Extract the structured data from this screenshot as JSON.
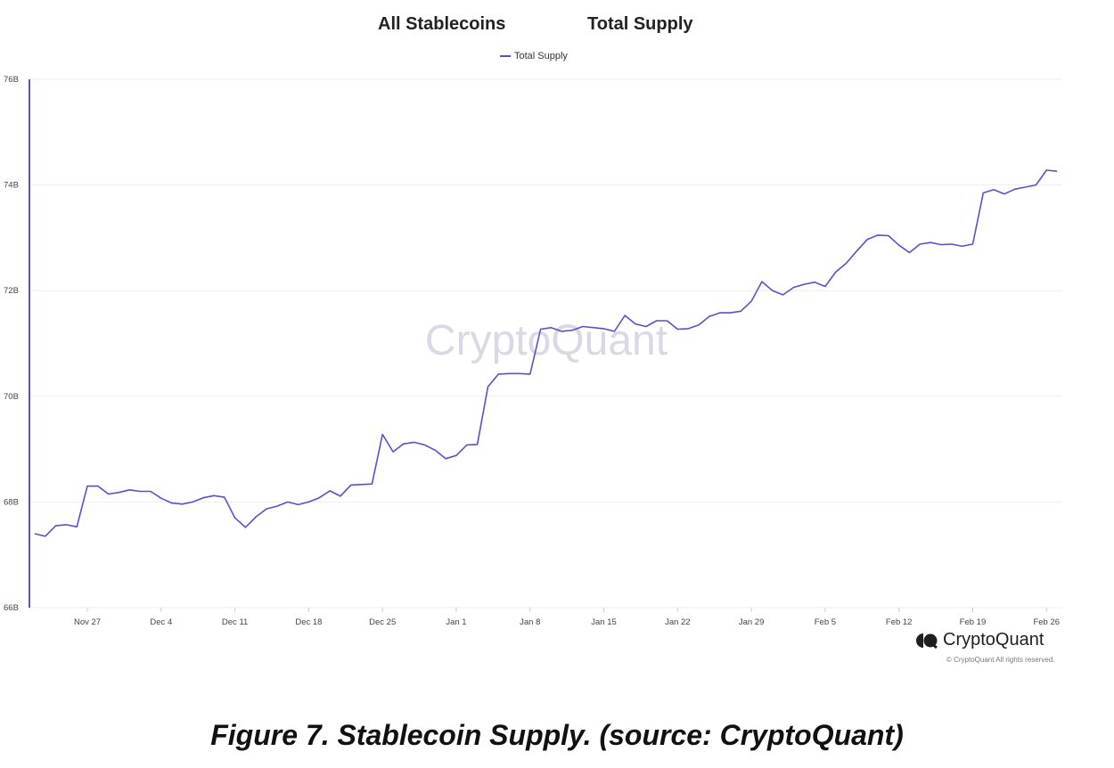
{
  "header": {
    "title_left": "All Stablecoins",
    "title_right": "Total Supply"
  },
  "watermark": "CryptoQuant",
  "brand": {
    "name": "CryptoQuant",
    "copyright": "© CryptoQuant All rights reserved.",
    "icon": "cryptoquant-logo-icon"
  },
  "caption": "Figure 7. Stablecoin Supply. (source: CryptoQuant)",
  "colors": {
    "line": "#5b4ed6",
    "grid": "#eeeeee",
    "axis": "#5b4ed6"
  },
  "chart_data": {
    "type": "line",
    "title": "",
    "xlabel": "",
    "ylabel": "",
    "legend": "top-center",
    "grid": true,
    "ylim": [
      66,
      76
    ],
    "y_unit": "B",
    "y_ticks": [
      {
        "value": 66,
        "label": "66B"
      },
      {
        "value": 68,
        "label": "68B"
      },
      {
        "value": 70,
        "label": "70B"
      },
      {
        "value": 72,
        "label": "72B"
      },
      {
        "value": 74,
        "label": "74B"
      },
      {
        "value": 76,
        "label": "76B"
      }
    ],
    "x_ticks": [
      {
        "date": "2022-11-27",
        "label": "Nov 27"
      },
      {
        "date": "2022-12-04",
        "label": "Dec 4"
      },
      {
        "date": "2022-12-11",
        "label": "Dec 11"
      },
      {
        "date": "2022-12-18",
        "label": "Dec 18"
      },
      {
        "date": "2022-12-25",
        "label": "Dec 25"
      },
      {
        "date": "2023-01-01",
        "label": "Jan 1"
      },
      {
        "date": "2023-01-08",
        "label": "Jan 8"
      },
      {
        "date": "2023-01-15",
        "label": "Jan 15"
      },
      {
        "date": "2023-01-22",
        "label": "Jan 22"
      },
      {
        "date": "2023-01-29",
        "label": "Jan 29"
      },
      {
        "date": "2023-02-05",
        "label": "Feb 5"
      },
      {
        "date": "2023-02-12",
        "label": "Feb 12"
      },
      {
        "date": "2023-02-19",
        "label": "Feb 19"
      },
      {
        "date": "2023-02-26",
        "label": "Feb 26"
      }
    ],
    "series": [
      {
        "name": "Total Supply",
        "x": [
          "2022-11-22",
          "2022-11-23",
          "2022-11-24",
          "2022-11-25",
          "2022-11-26",
          "2022-11-27",
          "2022-11-28",
          "2022-11-29",
          "2022-11-30",
          "2022-12-01",
          "2022-12-02",
          "2022-12-03",
          "2022-12-04",
          "2022-12-05",
          "2022-12-06",
          "2022-12-07",
          "2022-12-08",
          "2022-12-09",
          "2022-12-10",
          "2022-12-11",
          "2022-12-12",
          "2022-12-13",
          "2022-12-14",
          "2022-12-15",
          "2022-12-16",
          "2022-12-17",
          "2022-12-18",
          "2022-12-19",
          "2022-12-20",
          "2022-12-21",
          "2022-12-22",
          "2022-12-23",
          "2022-12-24",
          "2022-12-25",
          "2022-12-26",
          "2022-12-27",
          "2022-12-28",
          "2022-12-29",
          "2022-12-30",
          "2022-12-31",
          "2023-01-01",
          "2023-01-02",
          "2023-01-03",
          "2023-01-04",
          "2023-01-05",
          "2023-01-06",
          "2023-01-07",
          "2023-01-08",
          "2023-01-09",
          "2023-01-10",
          "2023-01-11",
          "2023-01-12",
          "2023-01-13",
          "2023-01-14",
          "2023-01-15",
          "2023-01-16",
          "2023-01-17",
          "2023-01-18",
          "2023-01-19",
          "2023-01-20",
          "2023-01-21",
          "2023-01-22",
          "2023-01-23",
          "2023-01-24",
          "2023-01-25",
          "2023-01-26",
          "2023-01-27",
          "2023-01-28",
          "2023-01-29",
          "2023-01-30",
          "2023-01-31",
          "2023-02-01",
          "2023-02-02",
          "2023-02-03",
          "2023-02-04",
          "2023-02-05",
          "2023-02-06",
          "2023-02-07",
          "2023-02-08",
          "2023-02-09",
          "2023-02-10",
          "2023-02-11",
          "2023-02-12",
          "2023-02-13",
          "2023-02-14",
          "2023-02-15",
          "2023-02-16",
          "2023-02-17",
          "2023-02-18",
          "2023-02-19",
          "2023-02-20",
          "2023-02-21",
          "2023-02-22",
          "2023-02-23",
          "2023-02-24",
          "2023-02-25",
          "2023-02-26",
          "2023-02-27"
        ],
        "values": [
          67.4,
          67.35,
          67.55,
          67.57,
          67.53,
          68.3,
          68.3,
          68.15,
          68.18,
          68.23,
          68.2,
          68.2,
          68.07,
          67.98,
          67.96,
          68.0,
          68.08,
          68.12,
          68.09,
          67.7,
          67.52,
          67.72,
          67.87,
          67.92,
          68.0,
          67.95,
          68.0,
          68.08,
          68.21,
          68.11,
          68.32,
          68.33,
          68.34,
          69.28,
          68.95,
          69.1,
          69.13,
          69.08,
          68.98,
          68.82,
          68.88,
          69.08,
          69.09,
          70.18,
          70.42,
          70.43,
          70.43,
          70.42,
          71.27,
          71.3,
          71.23,
          71.25,
          71.32,
          71.3,
          71.28,
          71.23,
          71.53,
          71.37,
          71.32,
          71.43,
          71.43,
          71.27,
          71.28,
          71.35,
          71.51,
          71.58,
          71.58,
          71.61,
          71.8,
          72.17,
          72.0,
          71.92,
          72.06,
          72.12,
          72.16,
          72.08,
          72.35,
          72.52,
          72.75,
          72.97,
          73.05,
          73.04,
          72.86,
          72.72,
          72.88,
          72.91,
          72.87,
          72.88,
          72.84,
          72.88,
          73.85,
          73.91,
          73.83,
          73.92,
          73.96,
          74.0,
          74.28,
          74.26
        ]
      }
    ]
  }
}
